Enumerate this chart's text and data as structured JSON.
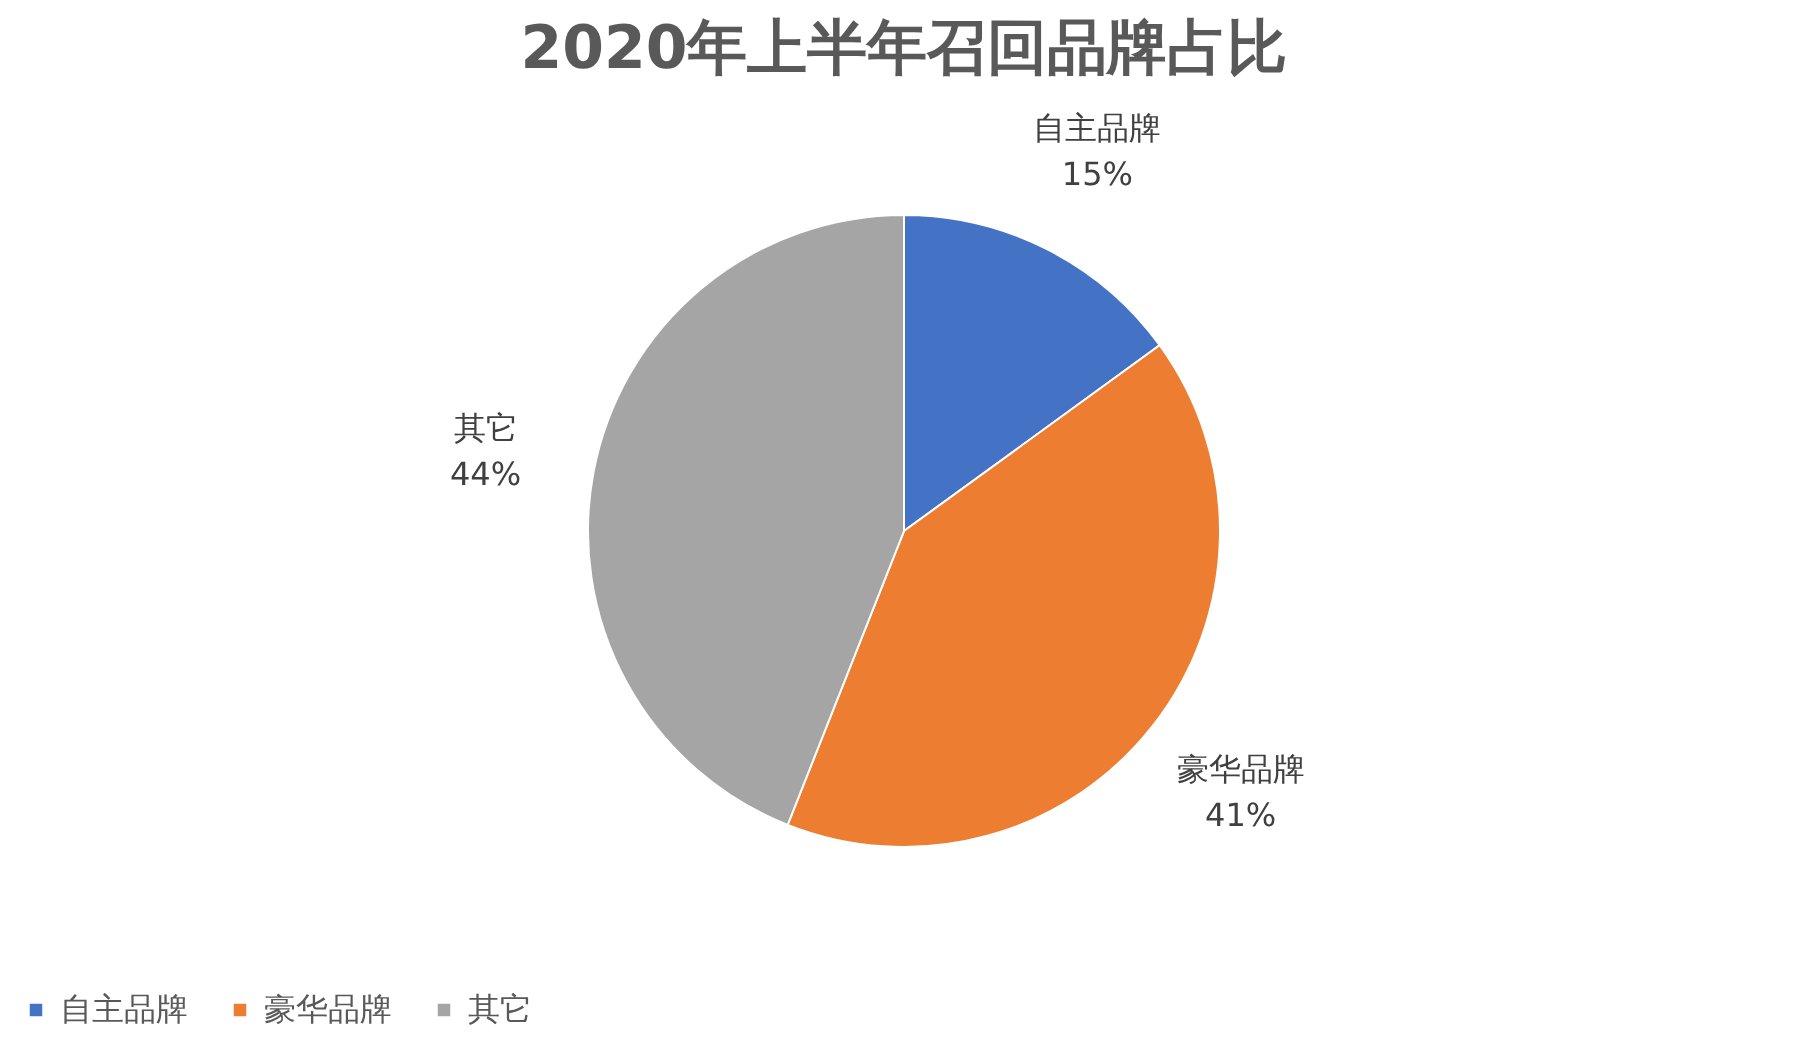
{
  "chart_data": {
    "type": "pie",
    "title": "2020年上半年召回品牌占比",
    "categories": [
      "自主品牌",
      "豪华品牌",
      "其它"
    ],
    "values": [
      15,
      41,
      44
    ],
    "colors": [
      "#4472c4",
      "#ed7d31",
      "#a5a5a5"
    ],
    "value_labels": [
      "15%",
      "41%",
      "44%"
    ],
    "legend": "bottom"
  }
}
